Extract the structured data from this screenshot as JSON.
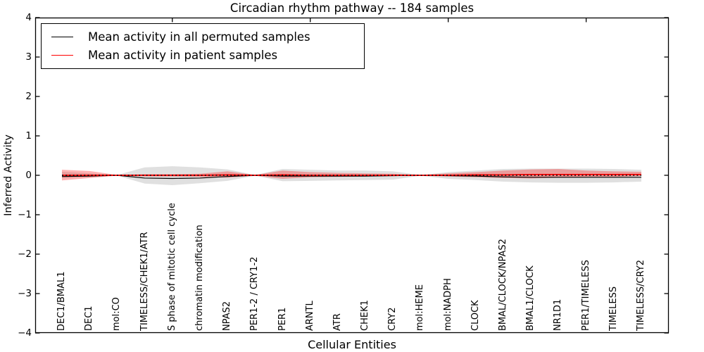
{
  "chart_data": {
    "type": "line",
    "title": "Circadian rhythm pathway -- 184 samples",
    "xlabel": "Cellular Entities",
    "ylabel": "Inferred Activity",
    "ylim": [
      -4,
      4
    ],
    "yticks": [
      -4,
      -3,
      -2,
      -1,
      0,
      1,
      2,
      3,
      4
    ],
    "xtick_mark_indices": [
      4,
      9,
      14,
      19
    ],
    "grid": false,
    "legend_position": "upper-left",
    "categories": [
      "DEC1/BMAL1",
      "DEC1",
      "mol:CO",
      "TIMELESS/CHEK1/ATR",
      "S phase of mitotic cell cycle",
      "chromatin modification",
      "NPAS2",
      "PER1-2 / CRY1-2",
      "PER1",
      "ARNTL",
      "ATR",
      "CHEK1",
      "CRY2",
      "mol:HEME",
      "mol:NADPH",
      "CLOCK",
      "BMAL/CLOCK/NPAS2",
      "BMAL1/CLOCK",
      "NR1D1",
      "PER1/TIMELESS",
      "TIMELESS",
      "TIMELESS/CRY2"
    ],
    "series": [
      {
        "name": "Mean activity in all permuted samples",
        "color": "#000000",
        "line_width": 1.2,
        "values": [
          -0.03,
          -0.02,
          0,
          -0.07,
          -0.08,
          -0.07,
          -0.03,
          0,
          -0.02,
          -0.02,
          -0.02,
          -0.02,
          -0.01,
          0,
          -0.01,
          -0.02,
          -0.04,
          -0.05,
          -0.05,
          -0.05,
          -0.05,
          -0.05
        ]
      },
      {
        "name": "Mean activity in patient samples",
        "color": "#ff0000",
        "line_width": 1.8,
        "values": [
          0,
          0,
          0,
          0,
          0,
          0,
          0.01,
          0,
          0.01,
          0,
          0,
          0,
          0,
          0,
          0,
          0.01,
          0.01,
          0.02,
          0.02,
          0.02,
          0.02,
          0.02
        ]
      }
    ],
    "bands": [
      {
        "name": "permuted-samples-range",
        "color": "#000000",
        "opacity": 0.12,
        "lo": [
          -0.07,
          -0.04,
          -0.01,
          -0.21,
          -0.25,
          -0.2,
          -0.14,
          -0.01,
          -0.15,
          -0.14,
          -0.13,
          -0.12,
          -0.11,
          -0.01,
          -0.09,
          -0.12,
          -0.16,
          -0.18,
          -0.19,
          -0.19,
          -0.18,
          -0.16
        ],
        "hi": [
          0.09,
          0.05,
          0.01,
          0.2,
          0.23,
          0.2,
          0.15,
          0.01,
          0.16,
          0.14,
          0.12,
          0.12,
          0.1,
          0.01,
          0.08,
          0.12,
          0.16,
          0.17,
          0.17,
          0.17,
          0.16,
          0.14
        ]
      },
      {
        "name": "patient-samples-range",
        "color": "#ff0000",
        "opacity": 0.3,
        "lo": [
          -0.13,
          -0.07,
          -0.01,
          -0.03,
          -0.03,
          -0.04,
          -0.06,
          -0.01,
          -0.09,
          -0.05,
          -0.04,
          -0.03,
          -0.02,
          -0.01,
          -0.03,
          -0.05,
          -0.07,
          -0.08,
          -0.06,
          -0.04,
          -0.04,
          -0.02
        ],
        "hi": [
          0.14,
          0.11,
          0.01,
          0.03,
          0.03,
          0.04,
          0.1,
          0.01,
          0.12,
          0.08,
          0.06,
          0.05,
          0.04,
          0.01,
          0.05,
          0.08,
          0.12,
          0.15,
          0.16,
          0.12,
          0.1,
          0.09
        ]
      }
    ],
    "zero_line": {
      "y": 0,
      "color": "#000000",
      "style": "dotted"
    },
    "legend": {
      "entries": [
        {
          "label": "Mean activity in all permuted samples",
          "color": "#000000"
        },
        {
          "label": "Mean activity in patient samples",
          "color": "#ff0000"
        }
      ]
    }
  }
}
